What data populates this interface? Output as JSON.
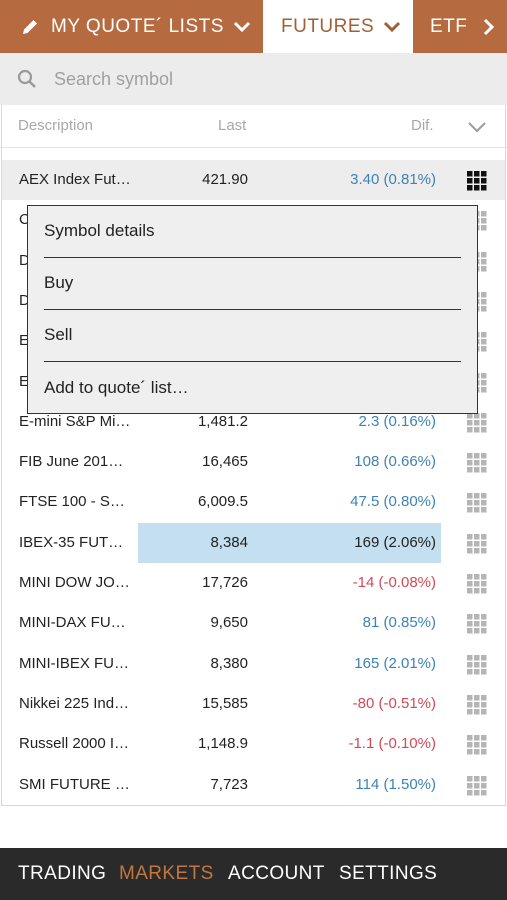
{
  "tabs": [
    {
      "label": "MY QUOTE´ LISTS",
      "icon": "pencil-icon",
      "active": false
    },
    {
      "label": "FUTURES",
      "active": true
    },
    {
      "label": "ETF",
      "active": false
    }
  ],
  "search": {
    "placeholder": "Search symbol",
    "icon": "search-icon"
  },
  "columns": {
    "description": "Description",
    "last": "Last",
    "dif": "Dif.",
    "expand_icon": "chevron-down-icon"
  },
  "rows": [
    {
      "description": "AEX Index Fut…",
      "last": "421.90",
      "dif": "3.40 (0.81%)",
      "trend": "pos"
    },
    {
      "description": "C",
      "last": "",
      "dif": "",
      "trend": "pos"
    },
    {
      "description": "D",
      "last": "",
      "dif": "",
      "trend": "pos"
    },
    {
      "description": "D",
      "last": "",
      "dif": "",
      "trend": "pos"
    },
    {
      "description": "E",
      "last": "",
      "dif": "",
      "trend": "pos"
    },
    {
      "description": "E",
      "last": "",
      "dif": "",
      "trend": "pos"
    },
    {
      "description": "E-mini S&P Mi…",
      "last": "1,481.2",
      "dif": "2.3 (0.16%)",
      "trend": "pos"
    },
    {
      "description": "FIB June 201…",
      "last": "16,465",
      "dif": "108 (0.66%)",
      "trend": "pos"
    },
    {
      "description": "FTSE 100 - S…",
      "last": "6,009.5",
      "dif": "47.5 (0.80%)",
      "trend": "pos"
    },
    {
      "description": "IBEX-35 FUT…",
      "last": "8,384",
      "dif": "169 (2.06%)",
      "trend": "pos",
      "highlighted": true
    },
    {
      "description": "MINI DOW JO…",
      "last": "17,726",
      "dif": "-14 (-0.08%)",
      "trend": "neg"
    },
    {
      "description": "MINI-DAX FU…",
      "last": "9,650",
      "dif": "81 (0.85%)",
      "trend": "pos"
    },
    {
      "description": "MINI-IBEX FU…",
      "last": "8,380",
      "dif": "165 (2.01%)",
      "trend": "pos"
    },
    {
      "description": "Nikkei 225 Ind…",
      "last": "15,585",
      "dif": "-80 (-0.51%)",
      "trend": "neg"
    },
    {
      "description": "Russell 2000 I…",
      "last": "1,148.9",
      "dif": "-1.1 (-0.10%)",
      "trend": "neg"
    },
    {
      "description": "SMI FUTURE …",
      "last": "7,723",
      "dif": "114 (1.50%)",
      "trend": "pos"
    }
  ],
  "popup": {
    "items": [
      "Symbol details",
      "Buy",
      "Sell",
      "Add to quote´ list…"
    ]
  },
  "bottom_nav": [
    {
      "label": "TRADING",
      "active": false
    },
    {
      "label": "MARKETS",
      "active": true
    },
    {
      "label": "ACCOUNT",
      "active": false
    },
    {
      "label": "SETTINGS",
      "active": false
    }
  ],
  "colors": {
    "accent": "#b66a3f",
    "positive": "#3d82b5",
    "negative": "#d24a55",
    "highlight": "#c3dff0"
  }
}
